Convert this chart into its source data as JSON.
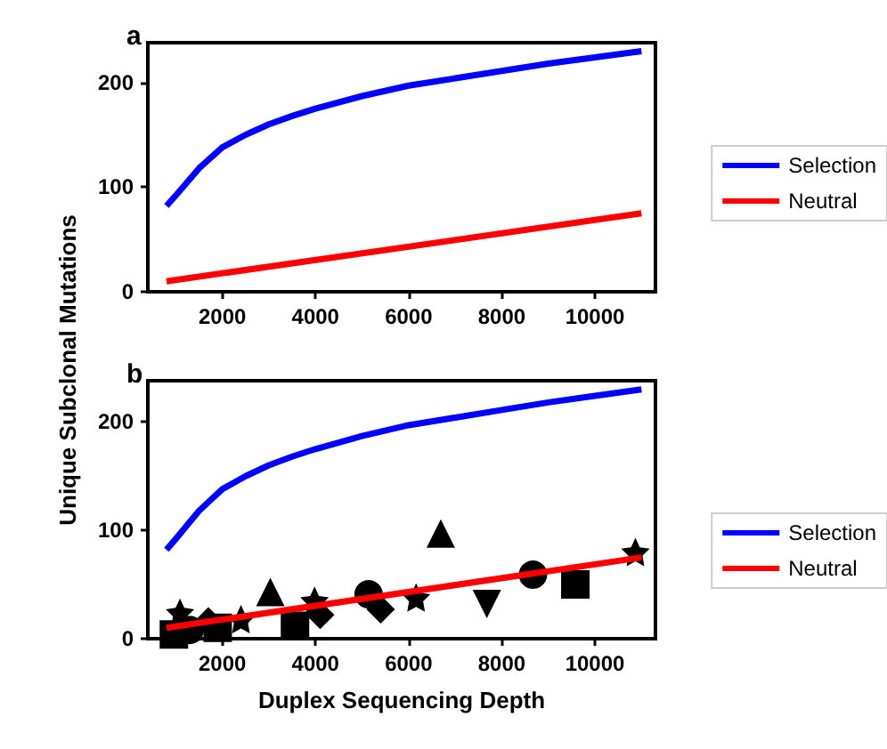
{
  "chart_data": [
    {
      "type": "line",
      "title": "a",
      "ylabel": "Unique Subclonal Mutations",
      "xlim": [
        400,
        11300
      ],
      "xticks": [
        2000,
        4000,
        6000,
        8000,
        10000
      ],
      "ylim": [
        0,
        238
      ],
      "yticks": [
        0,
        100,
        200
      ],
      "grid": false,
      "legend": "right",
      "marker": "none",
      "series": [
        {
          "name": "Selection",
          "color": "#0000ff",
          "x": [
            800,
            1000,
            1250,
            1500,
            1750,
            2000,
            2500,
            3000,
            3500,
            4000,
            5000,
            6000,
            7000,
            8000,
            9000,
            10000,
            11000
          ],
          "values": [
            82,
            92,
            105,
            118,
            128,
            138,
            150,
            160,
            168,
            175,
            187,
            197,
            204,
            211,
            218,
            224,
            230
          ]
        },
        {
          "name": "Neutral",
          "color": "#ff0000",
          "x": [
            800,
            11000
          ],
          "values": [
            10,
            75
          ]
        }
      ]
    },
    {
      "type": "line",
      "title": "b",
      "xlabel": "Duplex Sequencing Depth",
      "xlim": [
        400,
        11300
      ],
      "xticks": [
        2000,
        4000,
        6000,
        8000,
        10000
      ],
      "ylim": [
        0,
        238
      ],
      "yticks": [
        0,
        100,
        200
      ],
      "grid": false,
      "legend": "right",
      "series": [
        {
          "name": "Selection",
          "color": "#0000ff",
          "marker": "none",
          "x": [
            800,
            1000,
            1250,
            1500,
            1750,
            2000,
            2500,
            3000,
            3500,
            4000,
            5000,
            6000,
            7000,
            8000,
            9000,
            10000,
            11000
          ],
          "values": [
            82,
            92,
            105,
            118,
            128,
            138,
            150,
            160,
            168,
            175,
            187,
            197,
            204,
            211,
            218,
            224,
            230
          ]
        },
        {
          "type": "scatter",
          "color": "#000000",
          "marker": "triangle",
          "x": [
            3030,
            6690
          ],
          "values": [
            43,
            97
          ]
        },
        {
          "type": "scatter",
          "color": "#000000",
          "marker": "triangle-down",
          "x": [
            7680
          ],
          "values": [
            32
          ]
        },
        {
          "type": "scatter",
          "color": "#000000",
          "marker": "square",
          "x": [
            9580,
            3560,
            960,
            1900
          ],
          "values": [
            50,
            12,
            4,
            10
          ]
        },
        {
          "type": "scatter",
          "color": "#000000",
          "marker": "circle",
          "x": [
            8670,
            5140,
            1300
          ],
          "values": [
            59,
            41,
            8
          ]
        },
        {
          "type": "scatter",
          "color": "#000000",
          "marker": "star",
          "x": [
            10870,
            3980,
            6160,
            1090,
            2400
          ],
          "values": [
            80,
            35,
            38,
            24,
            18
          ]
        },
        {
          "type": "scatter",
          "color": "#000000",
          "marker": "diamond",
          "x": [
            5400,
            4100,
            1700
          ],
          "values": [
            27,
            22,
            16
          ]
        },
        {
          "name": "Neutral",
          "color": "#ff0000",
          "marker": "none",
          "x": [
            800,
            11000
          ],
          "values": [
            10,
            75
          ]
        }
      ]
    }
  ]
}
